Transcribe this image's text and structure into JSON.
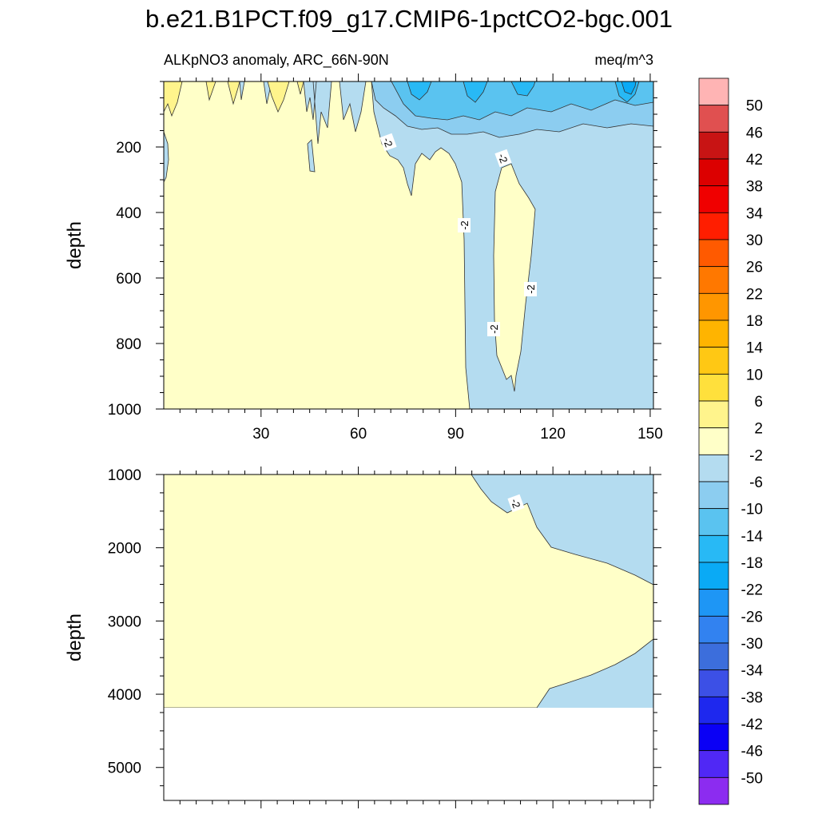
{
  "title": "b.e21.B1PCT.f09_g17.CMIP6-1pctCO2-bgc.001",
  "chart_data": [
    {
      "type": "heatmap",
      "panel": "upper",
      "subtitle_left": "ALKpNO3 anomaly, ARC_66N-90N",
      "subtitle_right": "meq/m^3",
      "ylabel": "depth",
      "xlabel": "",
      "xlim": [
        0,
        151
      ],
      "ylim": [
        1000,
        0
      ],
      "xticks": [
        30,
        60,
        90,
        120,
        150
      ],
      "xtick_labels": [
        "30",
        "60",
        "90",
        "120",
        "150"
      ],
      "yticks": [
        200,
        400,
        600,
        800,
        1000
      ],
      "ytick_labels": [
        "200",
        "400",
        "600",
        "800",
        "1000"
      ],
      "contour_labels": [
        "-2",
        "-2",
        "-2",
        "-2",
        "-2"
      ]
    },
    {
      "type": "heatmap",
      "panel": "lower",
      "ylabel": "depth",
      "xlabel": "",
      "xlim": [
        0,
        151
      ],
      "ylim": [
        5450,
        1000
      ],
      "yticks": [
        1000,
        2000,
        3000,
        4000,
        5000
      ],
      "ytick_labels": [
        "1000",
        "2000",
        "3000",
        "4000",
        "5000"
      ],
      "contour_labels": [
        "-2"
      ]
    }
  ],
  "colorbar": {
    "labels": [
      "50",
      "46",
      "42",
      "38",
      "34",
      "30",
      "26",
      "22",
      "18",
      "14",
      "10",
      "6",
      "2",
      "-2",
      "-6",
      "-10",
      "-14",
      "-18",
      "-22",
      "-26",
      "-30",
      "-34",
      "-38",
      "-42",
      "-46",
      "-50"
    ],
    "colors": [
      "#ffb4b4",
      "#e05050",
      "#c81414",
      "#dc0000",
      "#f00000",
      "#ff1e00",
      "#ff5a00",
      "#ff7800",
      "#ff9600",
      "#ffb400",
      "#ffc814",
      "#ffe03c",
      "#fff48c",
      "#ffffc8",
      "#b4dcf0",
      "#8ccdf0",
      "#5ac3f0",
      "#28b9f5",
      "#0aaaf5",
      "#1e96f5",
      "#3282f0",
      "#3c6edc",
      "#3c50e6",
      "#1e28ee",
      "#0a00f5",
      "#5028f5",
      "#8c2cf0"
    ]
  }
}
